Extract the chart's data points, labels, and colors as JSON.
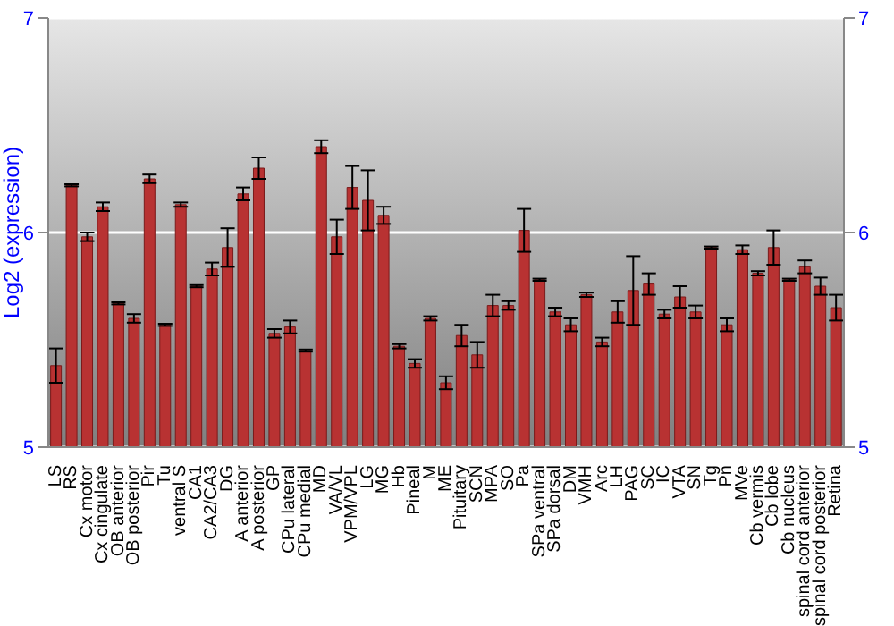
{
  "chart_data": {
    "type": "bar",
    "ylabel": "Log2 (expression)",
    "categories": [
      "LS",
      "RS",
      "Cx motor",
      "Cx cingulate",
      "OB anterior",
      "OB posterior",
      "Pir",
      "Tu",
      "ventral S",
      "CA1",
      "CA2/CA3",
      "DG",
      "A anterior",
      "A posterior",
      "GP",
      "CPu lateral",
      "CPu medial",
      "MD",
      "VA/VL",
      "VPM/VPL",
      "LG",
      "MG",
      "Hb",
      "Pineal",
      "M",
      "ME",
      "Pituitary",
      "SCN",
      "MPA",
      "SO",
      "Pa",
      "SPa ventral",
      "SPa dorsal",
      "DM",
      "VMH",
      "Arc",
      "LH",
      "PAG",
      "SC",
      "IC",
      "VTA",
      "SN",
      "Tg",
      "Pn",
      "MVe",
      "Cb vermis",
      "Cb lobe",
      "Cb nucleus",
      "spinal cord anterior",
      "spinal cord posterior",
      "Retina"
    ],
    "values": [
      5.38,
      6.22,
      5.98,
      6.12,
      5.67,
      5.6,
      6.25,
      5.57,
      6.13,
      5.75,
      5.83,
      5.93,
      6.18,
      6.3,
      5.53,
      5.56,
      5.45,
      6.4,
      5.98,
      6.21,
      6.15,
      6.08,
      5.47,
      5.39,
      5.6,
      5.3,
      5.52,
      5.43,
      5.66,
      5.66,
      6.01,
      5.78,
      5.63,
      5.57,
      5.71,
      5.49,
      5.63,
      5.73,
      5.76,
      5.62,
      5.7,
      5.63,
      5.93,
      5.57,
      5.92,
      5.81,
      5.93,
      5.78,
      5.84,
      5.75,
      5.65
    ],
    "errors": [
      0.08,
      0.005,
      0.02,
      0.02,
      0.005,
      0.02,
      0.02,
      0.005,
      0.01,
      0.005,
      0.03,
      0.09,
      0.03,
      0.05,
      0.02,
      0.03,
      0.005,
      0.03,
      0.08,
      0.1,
      0.14,
      0.04,
      0.01,
      0.02,
      0.01,
      0.03,
      0.05,
      0.06,
      0.05,
      0.02,
      0.1,
      0.005,
      0.02,
      0.03,
      0.01,
      0.02,
      0.05,
      0.16,
      0.05,
      0.02,
      0.05,
      0.03,
      0.005,
      0.03,
      0.02,
      0.01,
      0.08,
      0.005,
      0.03,
      0.04,
      0.06
    ],
    "color": "#b83232",
    "ylim": [
      5,
      7
    ],
    "yticks": [
      5,
      6,
      7
    ],
    "y2lim": [
      5,
      7
    ],
    "y2ticks": [
      5,
      6,
      7
    ],
    "grid": "y"
  }
}
